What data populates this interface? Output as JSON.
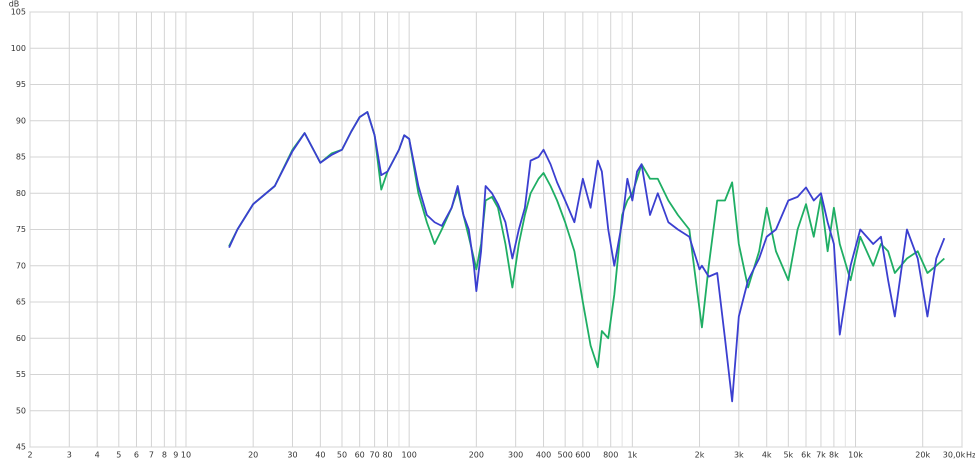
{
  "chart_data": {
    "type": "line",
    "y_label": "dB",
    "x_unit_label": "Hz",
    "log_x": true,
    "grid": true,
    "xlim": [
      2,
      30000
    ],
    "ylim": [
      45,
      105
    ],
    "yticks": [
      45,
      50,
      55,
      60,
      65,
      70,
      75,
      80,
      85,
      90,
      95,
      100,
      105
    ],
    "xticks": [
      2,
      3,
      4,
      5,
      6,
      7,
      8,
      9,
      10,
      20,
      30,
      40,
      50,
      60,
      70,
      80,
      100,
      200,
      300,
      400,
      500,
      600,
      800,
      {
        "value": 1000,
        "label": "1k"
      },
      {
        "value": 2000,
        "label": "2k"
      },
      {
        "value": 3000,
        "label": "3k"
      },
      {
        "value": 4000,
        "label": "4k"
      },
      {
        "value": 5000,
        "label": "5k"
      },
      {
        "value": 6000,
        "label": "6k"
      },
      {
        "value": 7000,
        "label": "7k"
      },
      {
        "value": 8000,
        "label": "8k"
      },
      {
        "value": 10000,
        "label": "10k"
      },
      {
        "value": 20000,
        "label": "20k"
      },
      {
        "value": 30000,
        "label": "30,0k"
      }
    ],
    "xminor": [
      90,
      700,
      900,
      9000
    ],
    "x": [
      15.6,
      17,
      20,
      25,
      30,
      34,
      38,
      40,
      45,
      50,
      55,
      60,
      65,
      70,
      75,
      80,
      90,
      95,
      100,
      110,
      120,
      130,
      140,
      155,
      165,
      175,
      185,
      195,
      200,
      210,
      220,
      235,
      250,
      270,
      290,
      310,
      330,
      350,
      380,
      400,
      430,
      460,
      500,
      550,
      600,
      650,
      700,
      730,
      780,
      830,
      900,
      950,
      1000,
      1050,
      1100,
      1200,
      1300,
      1450,
      1600,
      1800,
      2000,
      2050,
      2200,
      2400,
      2600,
      2800,
      3000,
      3300,
      3700,
      4000,
      4400,
      5000,
      5500,
      6000,
      6500,
      7000,
      7500,
      8000,
      8500,
      9500,
      10500,
      12000,
      13000,
      14000,
      15000,
      17000,
      19000,
      21000,
      23000,
      25000
    ],
    "series": [
      {
        "name": "green",
        "color": "#1fae64",
        "values": [
          72.7,
          75,
          78.5,
          81,
          86,
          88.3,
          85.5,
          84.2,
          85.5,
          86,
          88.5,
          90.5,
          91.2,
          88,
          80.5,
          83,
          86,
          88,
          87.5,
          80,
          76,
          73,
          75,
          78,
          80.5,
          77,
          74,
          71,
          69.5,
          73,
          79,
          79.5,
          78,
          73,
          67,
          73,
          77,
          80,
          82,
          82.8,
          81,
          79,
          76,
          72,
          65,
          59,
          56,
          61,
          60,
          66,
          77,
          79,
          80,
          82,
          84,
          82,
          82,
          79,
          77,
          75,
          64,
          61.5,
          70,
          79,
          79,
          81.5,
          73,
          67,
          72,
          78,
          72,
          68,
          75,
          78.5,
          74,
          79.5,
          72,
          78,
          73,
          68,
          74,
          70,
          73,
          72,
          69,
          71,
          72,
          69,
          70,
          71
        ]
      },
      {
        "name": "blue",
        "color": "#3b3fd0",
        "values": [
          72.5,
          75,
          78.5,
          81,
          85.8,
          88.3,
          85.5,
          84.2,
          85.3,
          86,
          88.5,
          90.5,
          91.2,
          88,
          82.5,
          83,
          86,
          88,
          87.5,
          81,
          77,
          76,
          75.5,
          78,
          81,
          77,
          75,
          70,
          66.5,
          72,
          81,
          80,
          78.5,
          76,
          71,
          75,
          78,
          84.5,
          85,
          86,
          84,
          81.5,
          79,
          76,
          82,
          78,
          84.5,
          83,
          75,
          70,
          76,
          82,
          79,
          83,
          84,
          77,
          80,
          76,
          75,
          74,
          69.5,
          70,
          68.5,
          69,
          60,
          51.3,
          63,
          68,
          71,
          74,
          75,
          79,
          79.5,
          80.8,
          79,
          80,
          76,
          73,
          60.5,
          70,
          75,
          73,
          74,
          68,
          63,
          75,
          71,
          63,
          71,
          73.8
        ]
      }
    ]
  }
}
